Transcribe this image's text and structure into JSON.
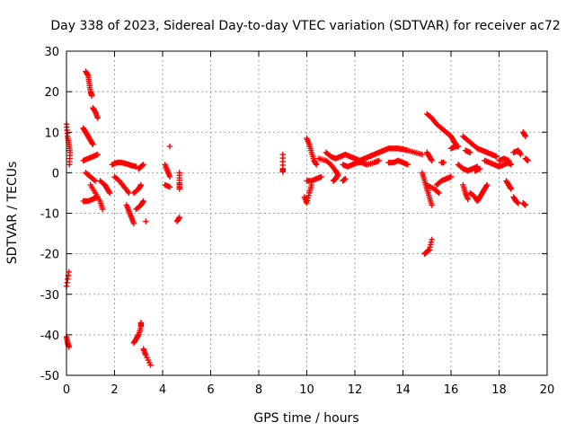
{
  "chart_data": {
    "type": "scatter",
    "title": "Day 338 of 2023, Sidereal Day-to-day VTEC variation (SDTVAR) for receiver ac72",
    "xlabel": "GPS time / hours",
    "ylabel": "SDTVAR / TECUs",
    "xlim": [
      0,
      20
    ],
    "ylim": [
      -50,
      30
    ],
    "xticks": [
      0,
      2,
      4,
      6,
      8,
      10,
      12,
      14,
      16,
      18,
      20
    ],
    "yticks": [
      -50,
      -40,
      -30,
      -20,
      -10,
      0,
      10,
      20,
      30
    ],
    "grid": true,
    "marker": "+",
    "color": "#ff0000",
    "series": [
      {
        "name": "SDTVAR",
        "segments": [
          [
            [
              0.0,
              12.0
            ],
            [
              0.05,
              9.0
            ],
            [
              0.1,
              7.0
            ],
            [
              0.15,
              5.0
            ],
            [
              0.12,
              2.0
            ]
          ],
          [
            [
              0.0,
              -28.0
            ],
            [
              0.1,
              -24.5
            ]
          ],
          [
            [
              0.0,
              -40.5
            ],
            [
              0.05,
              -42.0
            ],
            [
              0.1,
              -43.0
            ]
          ],
          [
            [
              0.8,
              25.0
            ],
            [
              0.9,
              24.0
            ],
            [
              0.95,
              22.0
            ],
            [
              1.0,
              20.0
            ],
            [
              1.05,
              19.0
            ]
          ],
          [
            [
              1.1,
              16.0
            ],
            [
              1.2,
              15.0
            ],
            [
              1.3,
              13.5
            ]
          ],
          [
            [
              0.7,
              11.0
            ],
            [
              0.8,
              10.0
            ],
            [
              0.9,
              9.0
            ],
            [
              1.0,
              8.0
            ],
            [
              1.1,
              7.0
            ]
          ],
          [
            [
              0.7,
              3.0
            ],
            [
              0.9,
              3.5
            ],
            [
              1.1,
              4.0
            ],
            [
              1.3,
              4.5
            ]
          ],
          [
            [
              0.8,
              0.0
            ],
            [
              1.0,
              -1.0
            ],
            [
              1.2,
              -2.0
            ]
          ],
          [
            [
              0.7,
              -7.0
            ],
            [
              0.9,
              -7.0
            ],
            [
              1.1,
              -6.5
            ],
            [
              1.3,
              -6.0
            ]
          ],
          [
            [
              1.0,
              -3.0
            ],
            [
              1.2,
              -5.0
            ],
            [
              1.4,
              -7.0
            ],
            [
              1.5,
              -9.0
            ]
          ],
          [
            [
              1.4,
              -2.0
            ],
            [
              1.6,
              -3.0
            ],
            [
              1.7,
              -4.0
            ],
            [
              1.8,
              -5.0
            ]
          ],
          [
            [
              1.9,
              2.0
            ],
            [
              2.1,
              2.5
            ],
            [
              2.3,
              2.5
            ],
            [
              2.5,
              2.2
            ],
            [
              2.7,
              1.8
            ],
            [
              2.9,
              1.5
            ]
          ],
          [
            [
              2.0,
              -1.0
            ],
            [
              2.2,
              -2.0
            ],
            [
              2.4,
              -3.5
            ],
            [
              2.6,
              -5.0
            ]
          ],
          [
            [
              2.5,
              -8.0
            ],
            [
              2.6,
              -9.5
            ],
            [
              2.7,
              -11.0
            ],
            [
              2.8,
              -12.5
            ]
          ],
          [
            [
              2.8,
              -5.0
            ],
            [
              3.0,
              -4.0
            ],
            [
              3.1,
              -3.0
            ]
          ],
          [
            [
              3.0,
              1.0
            ],
            [
              3.1,
              1.5
            ],
            [
              3.2,
              2.0
            ]
          ],
          [
            [
              2.9,
              -9.0
            ],
            [
              3.1,
              -8.0
            ],
            [
              3.2,
              -7.0
            ]
          ],
          [
            [
              3.3,
              -12.0
            ]
          ],
          [
            [
              2.8,
              -42.0
            ],
            [
              2.9,
              -41.0
            ],
            [
              3.0,
              -40.0
            ],
            [
              3.1,
              -38.0
            ],
            [
              3.1,
              -37.0
            ]
          ],
          [
            [
              3.2,
              -43.5
            ],
            [
              3.3,
              -45.0
            ],
            [
              3.5,
              -47.5
            ]
          ],
          [
            [
              4.1,
              2.0
            ],
            [
              4.2,
              0.5
            ],
            [
              4.3,
              -1.0
            ]
          ],
          [
            [
              4.3,
              6.5
            ]
          ],
          [
            [
              4.1,
              -3.0
            ],
            [
              4.3,
              -3.5
            ]
          ],
          [
            [
              4.7,
              0.0
            ],
            [
              4.7,
              -2.5
            ],
            [
              4.7,
              -4.0
            ]
          ],
          [
            [
              4.7,
              -11.0
            ],
            [
              4.6,
              -12.0
            ]
          ],
          [
            [
              9.0,
              4.5
            ],
            [
              9.0,
              1.0
            ],
            [
              9.0,
              0.2
            ]
          ],
          [
            [
              10.0,
              8.5
            ],
            [
              10.1,
              7.0
            ],
            [
              10.2,
              5.0
            ],
            [
              10.3,
              3.0
            ],
            [
              10.4,
              2.0
            ]
          ],
          [
            [
              9.9,
              -6.0
            ],
            [
              10.0,
              -7.5
            ],
            [
              10.1,
              -5.0
            ],
            [
              10.2,
              -3.0
            ]
          ],
          [
            [
              10.0,
              -2.0
            ],
            [
              10.2,
              -2.0
            ],
            [
              10.4,
              -1.5
            ],
            [
              10.6,
              -1.0
            ]
          ],
          [
            [
              10.5,
              3.5
            ],
            [
              10.8,
              3.0
            ],
            [
              11.0,
              2.0
            ],
            [
              11.2,
              0.5
            ],
            [
              11.3,
              -0.5
            ],
            [
              11.2,
              -1.5
            ],
            [
              11.1,
              -2.0
            ]
          ],
          [
            [
              11.5,
              -2.0
            ],
            [
              11.6,
              -1.5
            ]
          ],
          [
            [
              10.8,
              5.0
            ],
            [
              11.0,
              4.0
            ],
            [
              11.2,
              3.5
            ],
            [
              11.4,
              4.0
            ],
            [
              11.6,
              4.5
            ],
            [
              11.8,
              4.0
            ],
            [
              12.0,
              3.5
            ],
            [
              12.2,
              3.0
            ],
            [
              12.4,
              3.5
            ],
            [
              12.6,
              4.0
            ],
            [
              12.8,
              4.5
            ],
            [
              13.0,
              5.0
            ],
            [
              13.2,
              5.5
            ],
            [
              13.4,
              6.0
            ],
            [
              13.6,
              6.0
            ],
            [
              13.8,
              6.0
            ],
            [
              14.0,
              5.8
            ],
            [
              14.2,
              5.5
            ],
            [
              14.5,
              5.0
            ],
            [
              14.8,
              4.5
            ]
          ],
          [
            [
              11.5,
              2.0
            ],
            [
              11.7,
              1.5
            ],
            [
              11.9,
              2.0
            ],
            [
              12.1,
              2.5
            ],
            [
              12.3,
              2.5
            ],
            [
              12.5,
              2.0
            ],
            [
              12.8,
              2.5
            ],
            [
              13.0,
              3.0
            ]
          ],
          [
            [
              13.4,
              2.5
            ],
            [
              13.6,
              2.5
            ],
            [
              13.8,
              3.0
            ],
            [
              14.0,
              2.5
            ],
            [
              14.2,
              2.0
            ]
          ],
          [
            [
              15.0,
              14.5
            ],
            [
              15.2,
              13.5
            ],
            [
              15.4,
              12.0
            ],
            [
              15.6,
              11.0
            ],
            [
              15.8,
              10.0
            ],
            [
              16.0,
              9.0
            ],
            [
              16.1,
              8.0
            ],
            [
              16.2,
              7.0
            ]
          ],
          [
            [
              15.0,
              5.0
            ],
            [
              15.1,
              4.0
            ],
            [
              15.2,
              3.0
            ]
          ],
          [
            [
              14.8,
              0.0
            ],
            [
              14.9,
              -2.0
            ],
            [
              15.0,
              -4.0
            ],
            [
              15.1,
              -6.0
            ],
            [
              15.2,
              -8.0
            ]
          ],
          [
            [
              15.0,
              -3.0
            ],
            [
              15.3,
              -4.0
            ],
            [
              15.5,
              -5.0
            ]
          ],
          [
            [
              15.4,
              -3.0
            ],
            [
              15.6,
              -2.0
            ],
            [
              15.8,
              -1.5
            ],
            [
              16.0,
              -1.0
            ]
          ],
          [
            [
              15.6,
              2.5
            ],
            [
              15.7,
              2.5
            ]
          ],
          [
            [
              14.9,
              -20.0
            ],
            [
              15.0,
              -19.5
            ],
            [
              15.1,
              -19.0
            ],
            [
              15.2,
              -16.5
            ]
          ],
          [
            [
              16.0,
              6.0
            ],
            [
              16.2,
              6.5
            ],
            [
              16.3,
              6.5
            ]
          ],
          [
            [
              16.5,
              9.0
            ],
            [
              16.7,
              8.0
            ],
            [
              16.9,
              7.0
            ],
            [
              17.1,
              6.0
            ],
            [
              17.3,
              5.5
            ],
            [
              17.5,
              5.0
            ],
            [
              17.7,
              4.5
            ],
            [
              17.9,
              4.0
            ]
          ],
          [
            [
              16.3,
              2.0
            ],
            [
              16.5,
              1.0
            ],
            [
              16.7,
              0.5
            ],
            [
              16.9,
              1.0
            ],
            [
              17.1,
              1.5
            ]
          ],
          [
            [
              16.6,
              5.5
            ],
            [
              16.8,
              5.0
            ]
          ],
          [
            [
              16.5,
              -3.0
            ],
            [
              16.6,
              -5.0
            ],
            [
              16.7,
              -6.5
            ]
          ],
          [
            [
              16.8,
              -5.0
            ],
            [
              17.0,
              -6.0
            ],
            [
              17.1,
              -7.0
            ],
            [
              17.2,
              -6.0
            ],
            [
              17.3,
              -5.0
            ],
            [
              17.4,
              -4.0
            ],
            [
              17.5,
              -3.0
            ]
          ],
          [
            [
              17.0,
              0.5
            ],
            [
              17.2,
              1.0
            ]
          ],
          [
            [
              17.4,
              3.0
            ],
            [
              17.6,
              2.5
            ],
            [
              17.8,
              2.0
            ],
            [
              18.0,
              1.5
            ],
            [
              18.2,
              2.0
            ],
            [
              18.4,
              2.5
            ],
            [
              18.5,
              2.0
            ]
          ],
          [
            [
              18.0,
              3.0
            ],
            [
              18.2,
              3.5
            ],
            [
              18.4,
              3.0
            ]
          ],
          [
            [
              18.3,
              -2.0
            ],
            [
              18.4,
              -3.0
            ],
            [
              18.5,
              -4.0
            ]
          ],
          [
            [
              18.6,
              5.0
            ],
            [
              18.8,
              5.5
            ],
            [
              18.9,
              4.5
            ]
          ],
          [
            [
              18.6,
              -6.0
            ],
            [
              18.7,
              -7.0
            ],
            [
              18.8,
              -7.5
            ]
          ],
          [
            [
              19.0,
              10.0
            ],
            [
              19.1,
              9.0
            ]
          ],
          [
            [
              19.0,
              -7.5
            ],
            [
              19.1,
              -8.0
            ]
          ],
          [
            [
              19.1,
              3.5
            ],
            [
              19.2,
              3.0
            ]
          ]
        ]
      }
    ]
  }
}
